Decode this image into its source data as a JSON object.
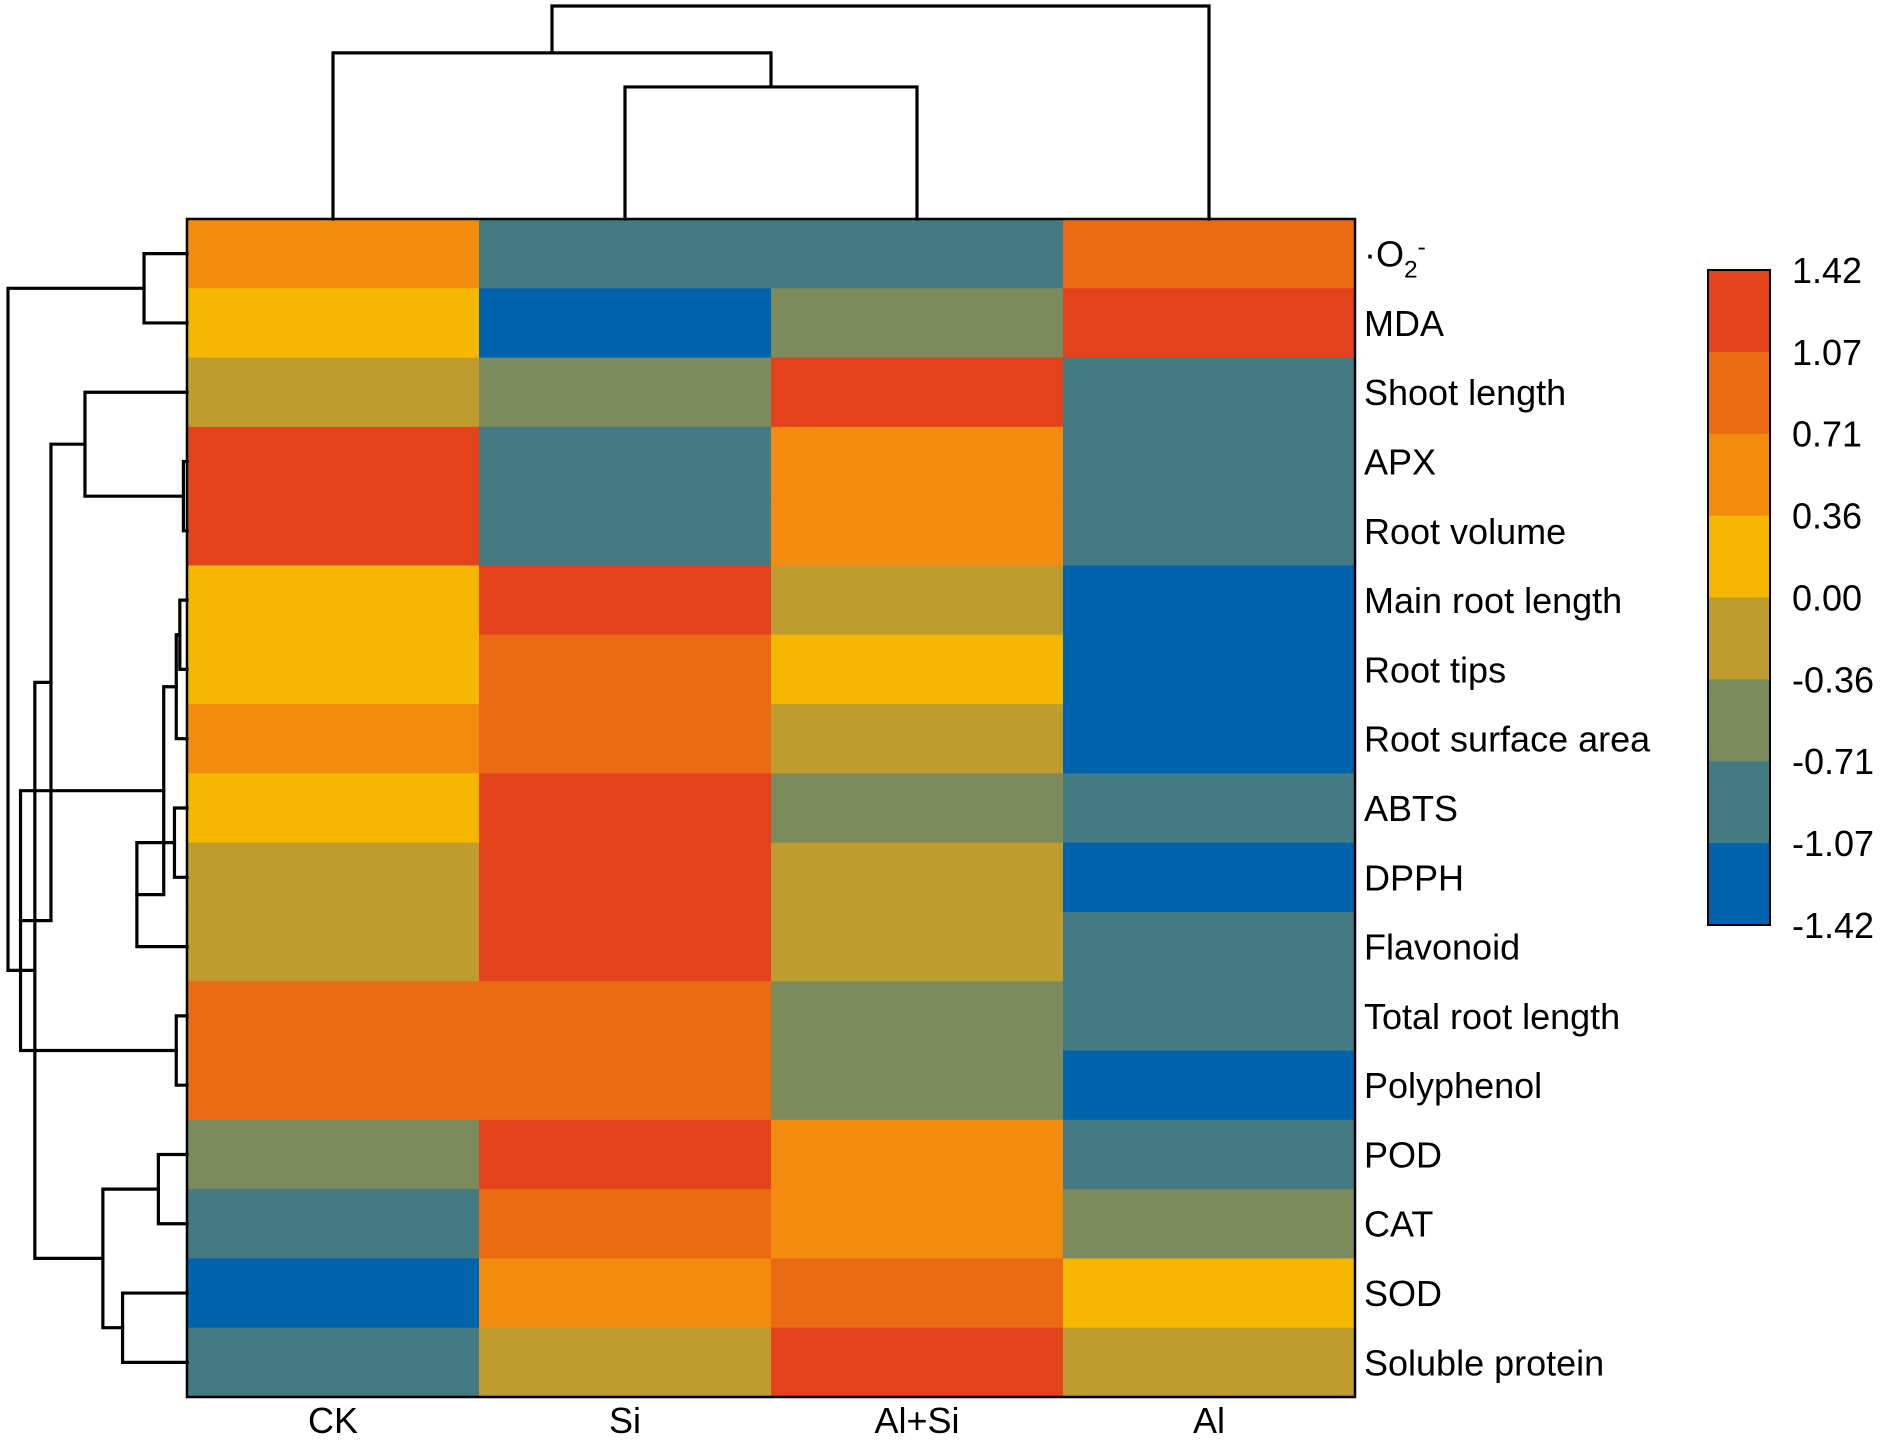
{
  "chart_data": {
    "type": "heatmap",
    "title": "",
    "columns": [
      "CK",
      "Si",
      "Al+Si",
      "Al"
    ],
    "rows": [
      {
        "label_prefix": "·O",
        "label_sub": "2",
        "label_sup": "-",
        "values": [
          0.6,
          -0.9,
          -0.9,
          0.85
        ]
      },
      {
        "label": "MDA",
        "values": [
          0.2,
          -1.25,
          -0.55,
          1.3
        ]
      },
      {
        "label": "Shoot length",
        "values": [
          -0.2,
          -0.55,
          1.3,
          -0.9
        ]
      },
      {
        "label": "APX",
        "values": [
          1.3,
          -0.9,
          0.6,
          -0.9
        ]
      },
      {
        "label": "Root volume",
        "values": [
          1.3,
          -0.9,
          0.6,
          -0.9
        ]
      },
      {
        "label": "Main root length",
        "values": [
          0.2,
          1.3,
          -0.2,
          -1.25
        ]
      },
      {
        "label": "Root tips",
        "values": [
          0.2,
          0.9,
          0.2,
          -1.25
        ]
      },
      {
        "label": "Root surface area",
        "values": [
          0.6,
          0.9,
          -0.2,
          -1.25
        ]
      },
      {
        "label": "ABTS",
        "values": [
          0.2,
          1.3,
          -0.55,
          -0.9
        ]
      },
      {
        "label": "DPPH",
        "values": [
          -0.2,
          1.3,
          -0.2,
          -1.25
        ]
      },
      {
        "label": "Flavonoid",
        "values": [
          -0.2,
          1.3,
          -0.2,
          -0.9
        ]
      },
      {
        "label": "Total root length",
        "values": [
          0.9,
          0.9,
          -0.55,
          -0.9
        ]
      },
      {
        "label": "Polyphenol",
        "values": [
          0.9,
          0.9,
          -0.55,
          -1.25
        ]
      },
      {
        "label": "POD",
        "values": [
          -0.55,
          1.3,
          0.6,
          -0.9
        ]
      },
      {
        "label": "CAT",
        "values": [
          -0.9,
          0.9,
          0.6,
          -0.55
        ]
      },
      {
        "label": "SOD",
        "values": [
          -1.25,
          0.6,
          0.9,
          0.2
        ]
      },
      {
        "label": "Soluble protein",
        "values": [
          -0.9,
          -0.2,
          1.3,
          -0.2
        ]
      }
    ],
    "color_scale": {
      "breaks": [
        -1.42,
        -1.07,
        -0.71,
        -0.36,
        0.0,
        0.36,
        0.71,
        1.07,
        1.42
      ],
      "break_labels": [
        "-1.42",
        "-1.07",
        "-0.71",
        "-0.36",
        "0.00",
        "0.36",
        "0.71",
        "1.07",
        "1.42"
      ],
      "colors": [
        "#0063AE",
        "#447A84",
        "#7C8B5C",
        "#BE9C2D",
        "#F6B700",
        "#F38B0F",
        "#EA6B14",
        "#E4421B"
      ]
    },
    "column_dendrogram": {
      "merges": [
        {
          "left": "Si",
          "right": "Al+Si",
          "height": 0.62
        },
        {
          "left": "CK",
          "right": "Si|Al+Si",
          "height": 0.78
        },
        {
          "left": "CK|Si|Al+Si",
          "right": "Al",
          "height": 1.0
        }
      ]
    },
    "row_dendrogram": {
      "merges": [
        {
          "left": "·O2-",
          "right": "MDA",
          "height": 0.24
        },
        {
          "left": "APX",
          "right": "Root volume",
          "height": 0.02
        },
        {
          "left": "Shoot length",
          "right": "APX|Root volume",
          "height": 0.57
        },
        {
          "left": "Main root length",
          "right": "Root tips",
          "height": 0.04
        },
        {
          "left": "Main root length|Root tips",
          "right": "Root surface area",
          "height": 0.06
        },
        {
          "left": "ABTS",
          "right": "DPPH",
          "height": 0.07
        },
        {
          "left": "ABTS|DPPH",
          "right": "Flavonoid",
          "height": 0.28
        },
        {
          "left": "Main root length|Root tips|Root surface area",
          "right": "ABTS|DPPH|Flavonoid",
          "height": 0.13
        },
        {
          "left": "Total root length",
          "right": "Polyphenol",
          "height": 0.06
        },
        {
          "left": "Main root length|Root tips|Root surface area|ABTS|DPPH|Flavonoid",
          "right": "Total root length|Polyphenol",
          "height": 0.93
        },
        {
          "left": "Shoot length|APX|Root volume",
          "right": "Main root length|Root tips|Root surface area|ABTS|DPPH|Flavonoid|Total root length|Polyphenol",
          "height": 0.76
        },
        {
          "left": "POD",
          "right": "CAT",
          "height": 0.16
        },
        {
          "left": "SOD",
          "right": "Soluble protein",
          "height": 0.36
        },
        {
          "left": "POD|CAT",
          "right": "SOD|Soluble protein",
          "height": 0.47
        },
        {
          "left": "Shoot length|APX|Root volume|Main root length|Root tips|Root surface area|ABTS|DPPH|Flavonoid|Total root length|Polyphenol",
          "right": "POD|CAT|SOD|Soluble protein",
          "height": 0.85
        },
        {
          "left": "·O2-|MDA",
          "right": "Shoot length|APX|Root volume|Main root length|Root tips|Root surface area|ABTS|DPPH|Flavonoid|Total root length|Polyphenol|POD|CAT|SOD|Soluble protein",
          "height": 1.0
        }
      ]
    }
  }
}
